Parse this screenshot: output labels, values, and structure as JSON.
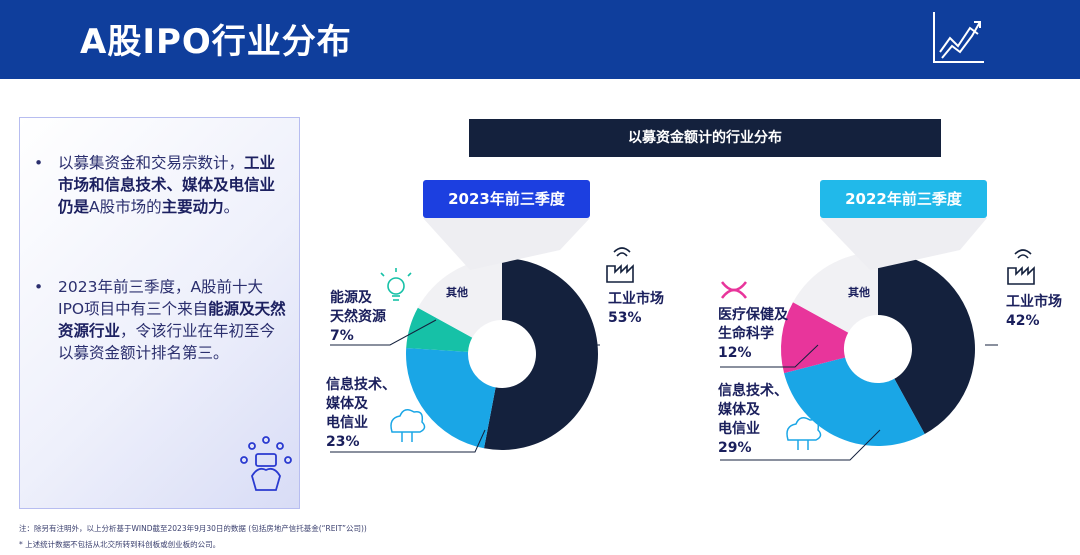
{
  "header": {
    "title": "A股IPO行业分布"
  },
  "left_panel": {
    "bullet1": {
      "plain1": "以募集资金和交易宗数计，",
      "bold": "工业市场和信息技术、媒体及电信业仍是",
      "plain2": "A股市场的",
      "bold2": "主要动力",
      "plain3": "。"
    },
    "bullet2": {
      "plain1": "2023年前三季度，A股前十大IPO项目中有三个来自",
      "bold": "能源及天然资源行业",
      "plain2": "，令该行业在年初至今以募资金额计排名第三。"
    }
  },
  "section_title": "以募资金额计的行业分布",
  "charts": [
    {
      "year_label": "2023年前三季度",
      "labels": {
        "industrial": "工业市场",
        "industrial_pct": "53%",
        "energy1": "能源及",
        "energy2": "天然资源",
        "energy_pct": "7%",
        "tmt1": "信息技术、",
        "tmt2": "媒体及",
        "tmt3": "电信业",
        "tmt_pct": "23%",
        "other": "其他"
      }
    },
    {
      "year_label": "2022年前三季度",
      "labels": {
        "industrial": "工业市场",
        "industrial_pct": "42%",
        "health1": "医疗保健及",
        "health2": "生命科学",
        "health_pct": "12%",
        "tmt1": "信息技术、",
        "tmt2": "媒体及",
        "tmt3": "电信业",
        "tmt_pct": "29%",
        "other": "其他"
      }
    }
  ],
  "chart_data": [
    {
      "type": "pie",
      "title": "2023年前三季度",
      "categories": [
        "工业市场",
        "信息技术、媒体及电信业",
        "能源及天然资源",
        "其他"
      ],
      "values": [
        53,
        23,
        7,
        17
      ],
      "colors": [
        "#14213d",
        "#1aa6e6",
        "#16c1a7",
        "#f1f1f4"
      ]
    },
    {
      "type": "pie",
      "title": "2022年前三季度",
      "categories": [
        "工业市场",
        "信息技术、媒体及电信业",
        "医疗保健及生命科学",
        "其他"
      ],
      "values": [
        42,
        29,
        12,
        17
      ],
      "colors": [
        "#14213d",
        "#1aa6e6",
        "#e8359b",
        "#f1f1f4"
      ]
    }
  ],
  "footnotes": {
    "line1": "注：除另有注明外，以上分析基于WIND截至2023年9月30日的数据 (包括房地产信托基金(“REIT”公司))",
    "line2": "* 上述统计数据不包括从北交所转到科创板或创业板的公司。"
  }
}
